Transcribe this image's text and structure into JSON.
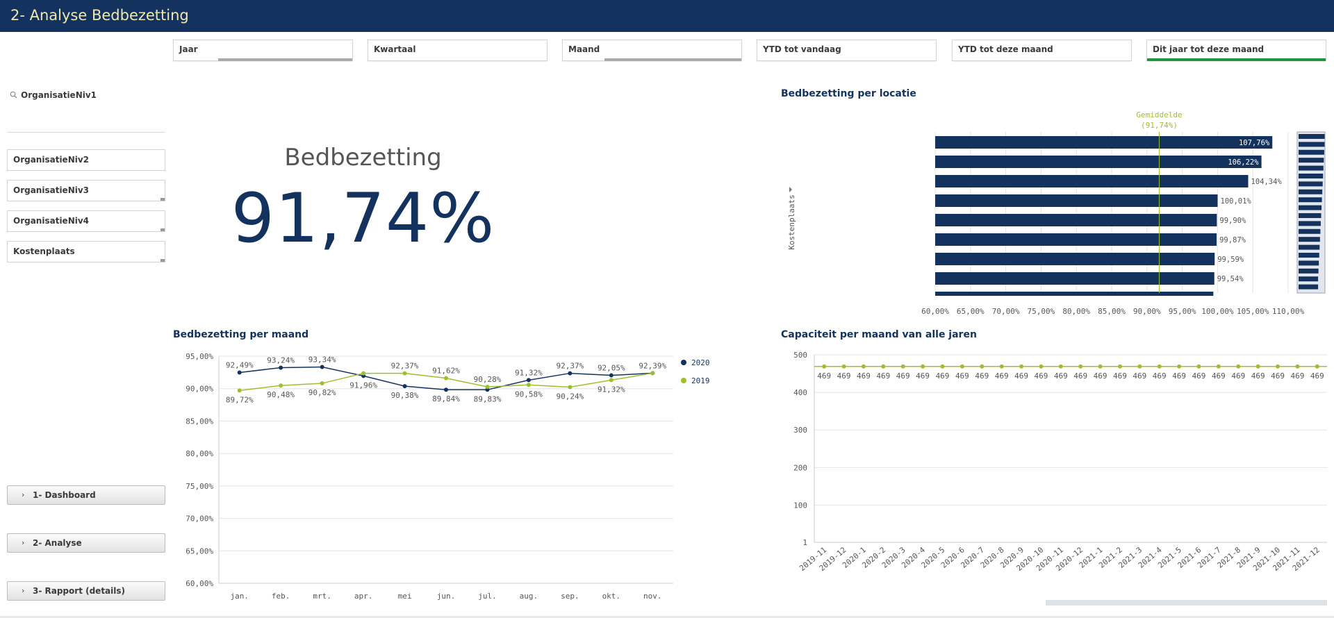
{
  "app": {
    "title": "2- Analyse Bedbezetting"
  },
  "filters": [
    {
      "label": "Jaar"
    },
    {
      "label": "Kwartaal"
    },
    {
      "label": "Maand"
    },
    {
      "label": "YTD tot vandaag"
    },
    {
      "label": "YTD tot deze maand"
    },
    {
      "label": "Dit jaar tot deze maand"
    }
  ],
  "sidebar": {
    "search_label": "OrganisatieNiv1",
    "levels": [
      "OrganisatieNiv2",
      "OrganisatieNiv3",
      "OrganisatieNiv4",
      "Kostenplaats"
    ],
    "nav": [
      "1- Dashboard",
      "2- Analyse",
      "3- Rapport (details)"
    ]
  },
  "kpi": {
    "title": "Bedbezetting",
    "value": "91,74%"
  },
  "colors": {
    "navy": "#14325e",
    "green": "#9dc02a",
    "header_text": "#f1e7b2",
    "active": "#20963c"
  },
  "chart_data": [
    {
      "type": "bar",
      "title": "Bedbezetting per locatie",
      "orientation": "horizontal",
      "dimension_label": "Kostenplaats",
      "reference_line": {
        "label": "Gemiddelde",
        "value_label": "(91,74%)",
        "value": 91.74
      },
      "values": [
        107.76,
        106.22,
        104.34,
        100.01,
        99.9,
        99.87,
        99.59,
        99.54
      ],
      "value_labels": [
        "107,76%",
        "106,22%",
        "104,34%",
        "100,01%",
        "99,90%",
        "99,87%",
        "99,59%",
        "99,54%"
      ],
      "xlim": [
        60,
        110
      ],
      "x_ticks": [
        "60,00%",
        "65,00%",
        "70,00%",
        "75,00%",
        "80,00%",
        "85,00%",
        "90,00%",
        "95,00%",
        "100,00%",
        "105,00%",
        "110,00%"
      ],
      "grid": true
    },
    {
      "type": "line",
      "title": "Bedbezetting per maand",
      "categories": [
        "jan.",
        "feb.",
        "mrt.",
        "apr.",
        "mei",
        "jun.",
        "jul.",
        "aug.",
        "sep.",
        "okt.",
        "nov."
      ],
      "series": [
        {
          "name": "2020",
          "values": [
            92.49,
            93.24,
            93.34,
            91.96,
            90.38,
            89.84,
            89.83,
            91.32,
            92.37,
            92.05,
            92.39
          ],
          "labels": [
            "92,49%",
            "93,24%",
            "93,34%",
            "91,96%",
            "90,38%",
            "89,84%",
            "89,83%",
            "91,32%",
            "92,37%",
            "92,05%",
            "92,39%"
          ]
        },
        {
          "name": "2019",
          "values": [
            89.72,
            90.48,
            90.82,
            92.37,
            92.37,
            91.62,
            90.28,
            90.58,
            90.24,
            91.32,
            92.39
          ],
          "labels": [
            "89,72%",
            "90,48%",
            "90,82%",
            "",
            "92,37%",
            "91,62%",
            "90,28%",
            "90,58%",
            "90,24%",
            "91,32%",
            ""
          ]
        }
      ],
      "ylim": [
        60,
        95
      ],
      "y_ticks": [
        "95,00%",
        "90,00%",
        "85,00%",
        "80,00%",
        "75,00%",
        "70,00%",
        "65,00%",
        "60,00%"
      ],
      "legend": "right",
      "grid": true
    },
    {
      "type": "line",
      "title": "Capaciteit per maand van alle jaren",
      "categories": [
        "2019-11",
        "2019-12",
        "2020-1",
        "2020-2",
        "2020-3",
        "2020-4",
        "2020-5",
        "2020-6",
        "2020-7",
        "2020-8",
        "2020-9",
        "2020-10",
        "2020-11",
        "2020-12",
        "2021-1",
        "2021-2",
        "2021-3",
        "2021-4",
        "2021-5",
        "2021-6",
        "2021-7",
        "2021-8",
        "2021-9",
        "2021-10",
        "2021-11",
        "2021-12"
      ],
      "values": [
        469,
        469,
        469,
        469,
        469,
        469,
        469,
        469,
        469,
        469,
        469,
        469,
        469,
        469,
        469,
        469,
        469,
        469,
        469,
        469,
        469,
        469,
        469,
        469,
        469,
        469
      ],
      "value_label": "469",
      "ylim": [
        1,
        500
      ],
      "y_ticks": [
        "500",
        "400",
        "300",
        "200",
        "100",
        "1"
      ],
      "grid": true
    }
  ]
}
